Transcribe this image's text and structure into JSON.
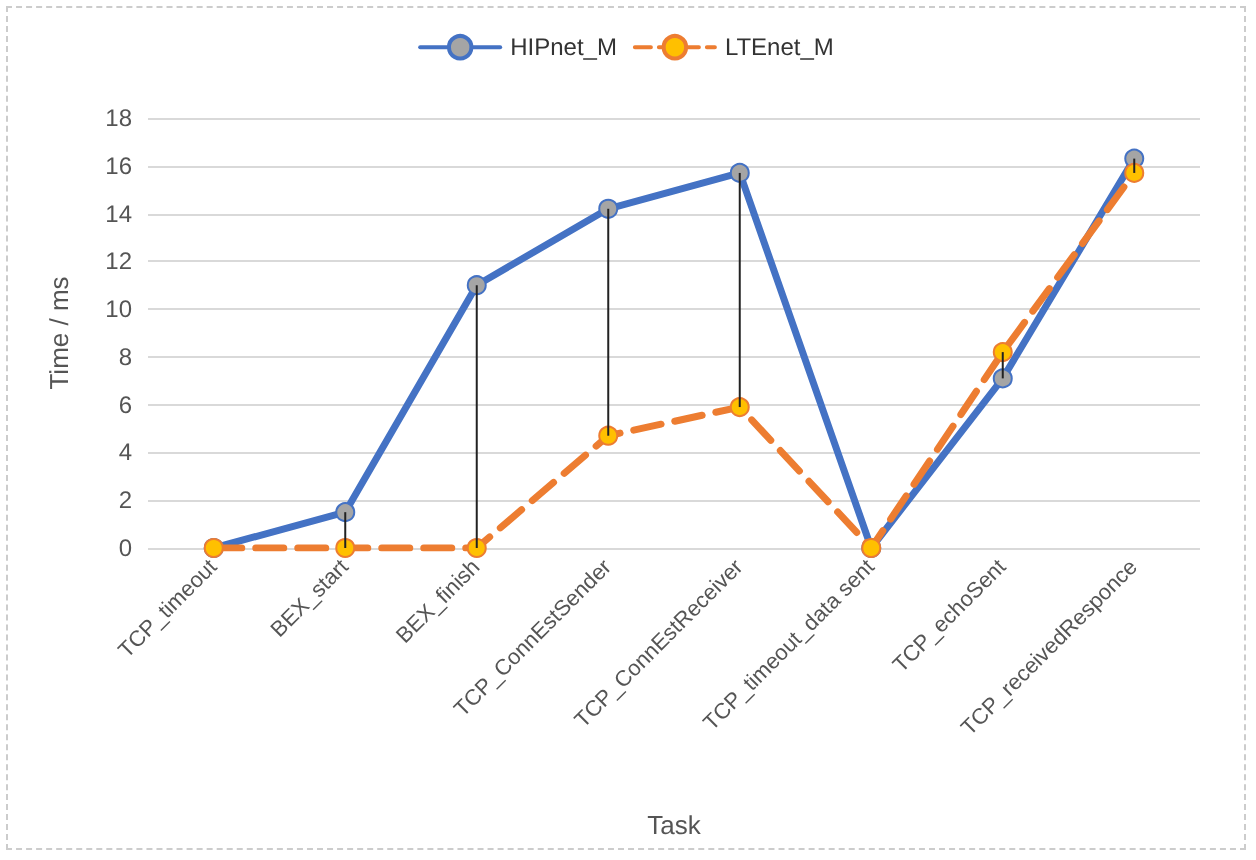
{
  "chart_data": {
    "type": "line",
    "xlabel": "Task",
    "ylabel": "Time / ms",
    "categories": [
      "TCP_timeout",
      "BEX_start",
      "BEX_finish",
      "TCP_ConnEstSender",
      "TCP_ConnEstReceiver",
      "TCP_timeout_data sent",
      "TCP_echoSent",
      "TCP_receivedResponce"
    ],
    "series": [
      {
        "name": "HIPnet_M",
        "color": "#4472c4",
        "line_style": "solid",
        "values": [
          0,
          1.5,
          11,
          14.2,
          15.7,
          0,
          7.1,
          16.3
        ],
        "errors": [
          null,
          [
            0,
            1.5
          ],
          [
            0,
            11
          ],
          [
            4.7,
            14.2
          ],
          [
            5.9,
            15.7
          ],
          null,
          [
            7.1,
            8.2
          ],
          [
            15.7,
            16.3
          ]
        ]
      },
      {
        "name": "LTEnet_M",
        "color": "#ed7d31",
        "line_style": "dashed",
        "values": [
          0,
          0,
          0,
          4.7,
          5.9,
          0,
          8.2,
          15.7
        ]
      }
    ],
    "ylim": [
      0,
      18
    ],
    "yticks": [
      0,
      2,
      4,
      6,
      8,
      10,
      12,
      14,
      16,
      18
    ],
    "grid": "y",
    "legend": "top",
    "marker": "circle"
  }
}
